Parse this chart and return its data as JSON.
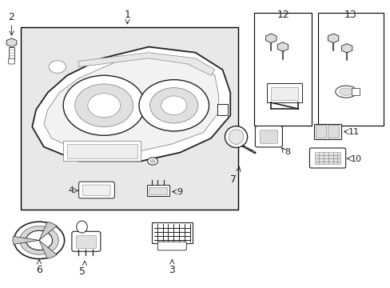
{
  "background_color": "#ffffff",
  "label_fontsize": 9,
  "dark": "#222222",
  "gray": "#888888",
  "bg_gray": "#e8e8e8"
}
